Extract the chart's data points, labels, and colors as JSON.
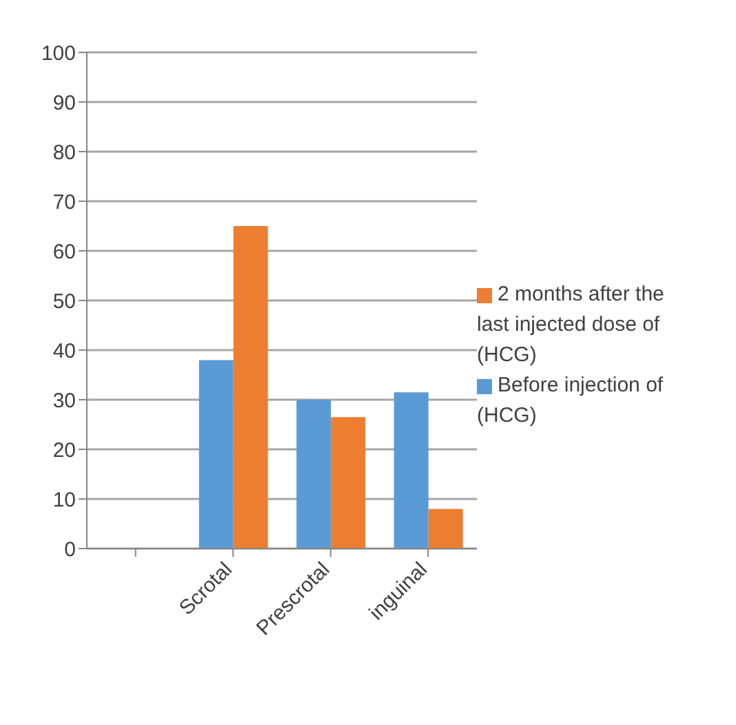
{
  "chart_data": {
    "type": "bar",
    "categories": [
      null,
      "Scrotal",
      "Prescrotal",
      "inguinal"
    ],
    "series": [
      {
        "name": "Before injection of (HCG)",
        "color": "#5b9bd5",
        "values": [
          null,
          38,
          30,
          31.5
        ]
      },
      {
        "name": "2 months after the last injected dose of (HCG)",
        "color": "#ed7d31",
        "values": [
          null,
          65,
          26.5,
          8
        ]
      }
    ],
    "ylim": [
      0,
      100
    ],
    "yticks": [
      0,
      10,
      20,
      30,
      40,
      50,
      60,
      70,
      80,
      90,
      100
    ],
    "grid": "y",
    "legend": "right"
  }
}
